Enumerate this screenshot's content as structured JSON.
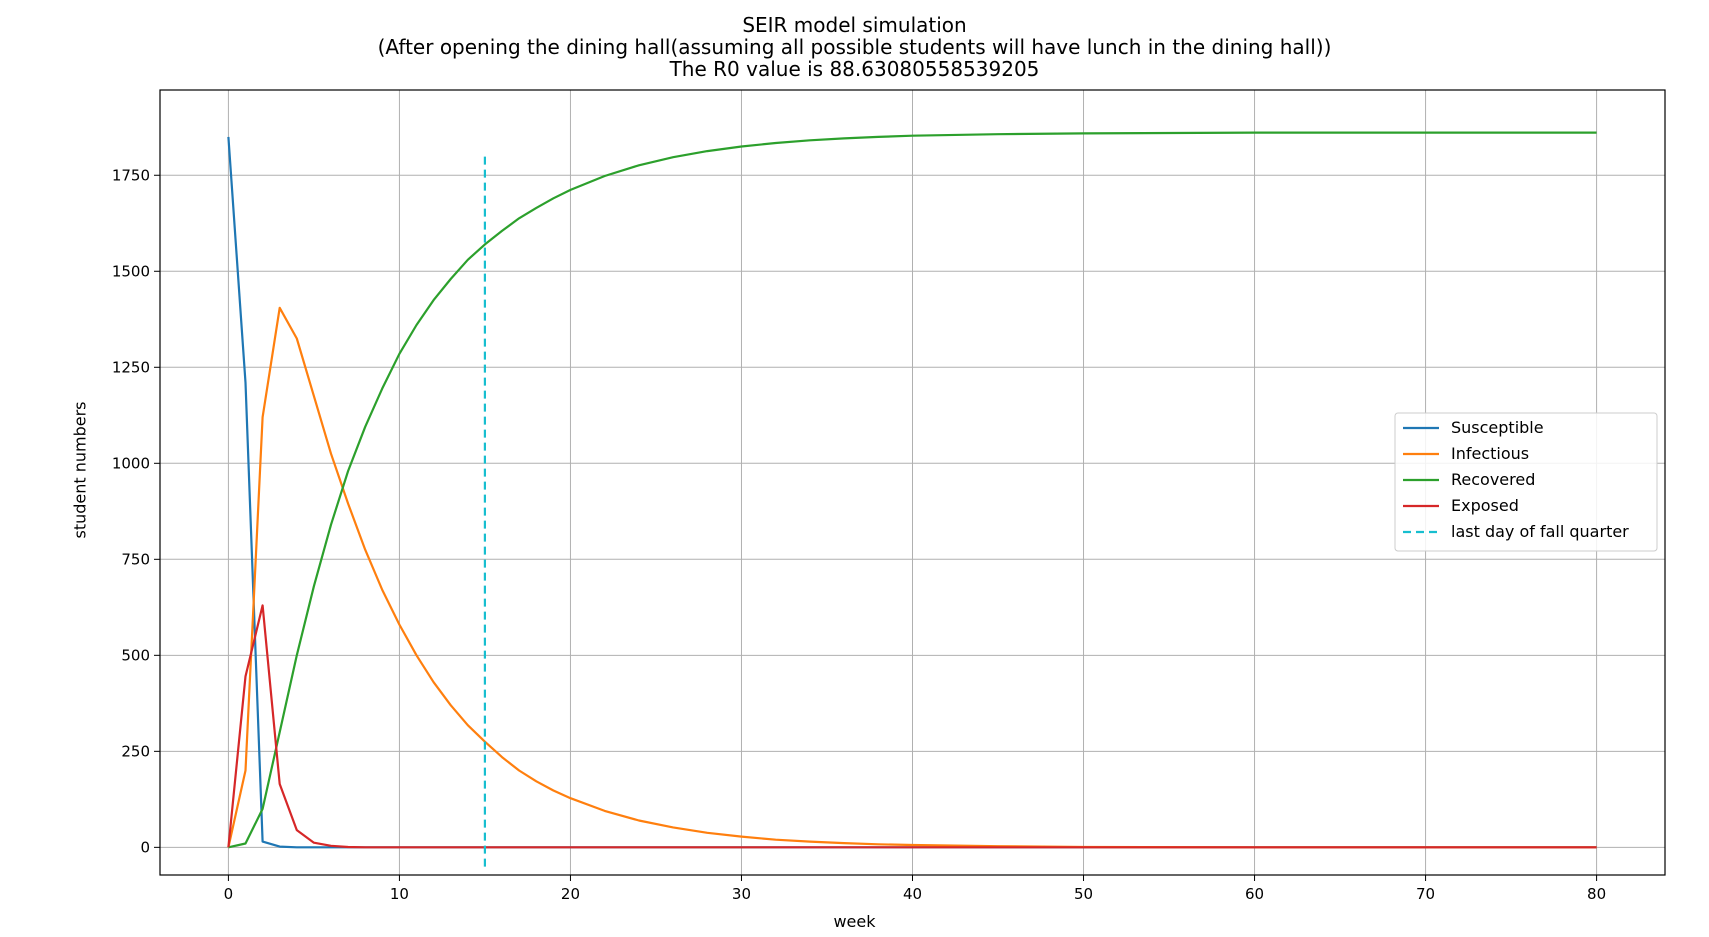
{
  "chart_data": {
    "type": "line",
    "title_lines": [
      "SEIR model simulation",
      "(After opening the dining hall(assuming all possible students will have lunch in the dining hall))",
      "The R0 value is 88.63080558539205"
    ],
    "xlabel": "week",
    "ylabel": "student numbers",
    "xlim": [
      -4,
      84
    ],
    "ylim": [
      -72,
      1972
    ],
    "xticks": [
      0,
      10,
      20,
      30,
      40,
      50,
      60,
      70,
      80
    ],
    "yticks": [
      0,
      250,
      500,
      750,
      1000,
      1250,
      1500,
      1750
    ],
    "grid": true,
    "legend_position": "center-right",
    "series": [
      {
        "name": "Susceptible",
        "color": "#1f77b4",
        "style": "solid",
        "points": [
          [
            0,
            1850
          ],
          [
            1,
            1210
          ],
          [
            2,
            15
          ],
          [
            3,
            2
          ],
          [
            4,
            0
          ],
          [
            80,
            0
          ]
        ]
      },
      {
        "name": "Infectious",
        "color": "#ff7f0e",
        "style": "solid",
        "points": [
          [
            0,
            0
          ],
          [
            1,
            200
          ],
          [
            2,
            1120
          ],
          [
            3,
            1405
          ],
          [
            4,
            1325
          ],
          [
            5,
            1175
          ],
          [
            6,
            1025
          ],
          [
            7,
            895
          ],
          [
            8,
            775
          ],
          [
            9,
            670
          ],
          [
            10,
            580
          ],
          [
            11,
            500
          ],
          [
            12,
            430
          ],
          [
            13,
            370
          ],
          [
            14,
            318
          ],
          [
            15,
            275
          ],
          [
            16,
            235
          ],
          [
            17,
            200
          ],
          [
            18,
            172
          ],
          [
            19,
            148
          ],
          [
            20,
            128
          ],
          [
            22,
            95
          ],
          [
            24,
            70
          ],
          [
            26,
            52
          ],
          [
            28,
            38
          ],
          [
            30,
            28
          ],
          [
            32,
            20
          ],
          [
            34,
            15
          ],
          [
            36,
            11
          ],
          [
            38,
            8
          ],
          [
            40,
            6
          ],
          [
            45,
            3
          ],
          [
            50,
            1
          ],
          [
            60,
            0
          ],
          [
            80,
            0
          ]
        ]
      },
      {
        "name": "Recovered",
        "color": "#2ca02c",
        "style": "solid",
        "points": [
          [
            0,
            0
          ],
          [
            1,
            10
          ],
          [
            2,
            100
          ],
          [
            3,
            300
          ],
          [
            4,
            500
          ],
          [
            5,
            680
          ],
          [
            6,
            840
          ],
          [
            7,
            980
          ],
          [
            8,
            1095
          ],
          [
            9,
            1195
          ],
          [
            10,
            1285
          ],
          [
            11,
            1360
          ],
          [
            12,
            1425
          ],
          [
            13,
            1480
          ],
          [
            14,
            1530
          ],
          [
            15,
            1570
          ],
          [
            16,
            1605
          ],
          [
            17,
            1638
          ],
          [
            18,
            1665
          ],
          [
            19,
            1690
          ],
          [
            20,
            1712
          ],
          [
            22,
            1748
          ],
          [
            24,
            1776
          ],
          [
            26,
            1797
          ],
          [
            28,
            1813
          ],
          [
            30,
            1825
          ],
          [
            32,
            1834
          ],
          [
            34,
            1841
          ],
          [
            36,
            1846
          ],
          [
            38,
            1850
          ],
          [
            40,
            1853
          ],
          [
            45,
            1857
          ],
          [
            50,
            1859
          ],
          [
            60,
            1861
          ],
          [
            70,
            1861
          ],
          [
            80,
            1861
          ]
        ]
      },
      {
        "name": "Exposed",
        "color": "#d62728",
        "style": "solid",
        "points": [
          [
            0,
            0
          ],
          [
            1,
            445
          ],
          [
            2,
            630
          ],
          [
            3,
            165
          ],
          [
            4,
            45
          ],
          [
            5,
            12
          ],
          [
            6,
            4
          ],
          [
            7,
            1
          ],
          [
            8,
            0
          ],
          [
            80,
            0
          ]
        ]
      },
      {
        "name": "last day of fall quarter",
        "color": "#17becf",
        "style": "dashed",
        "points": [
          [
            15,
            -50
          ],
          [
            15,
            1800
          ]
        ]
      }
    ]
  }
}
